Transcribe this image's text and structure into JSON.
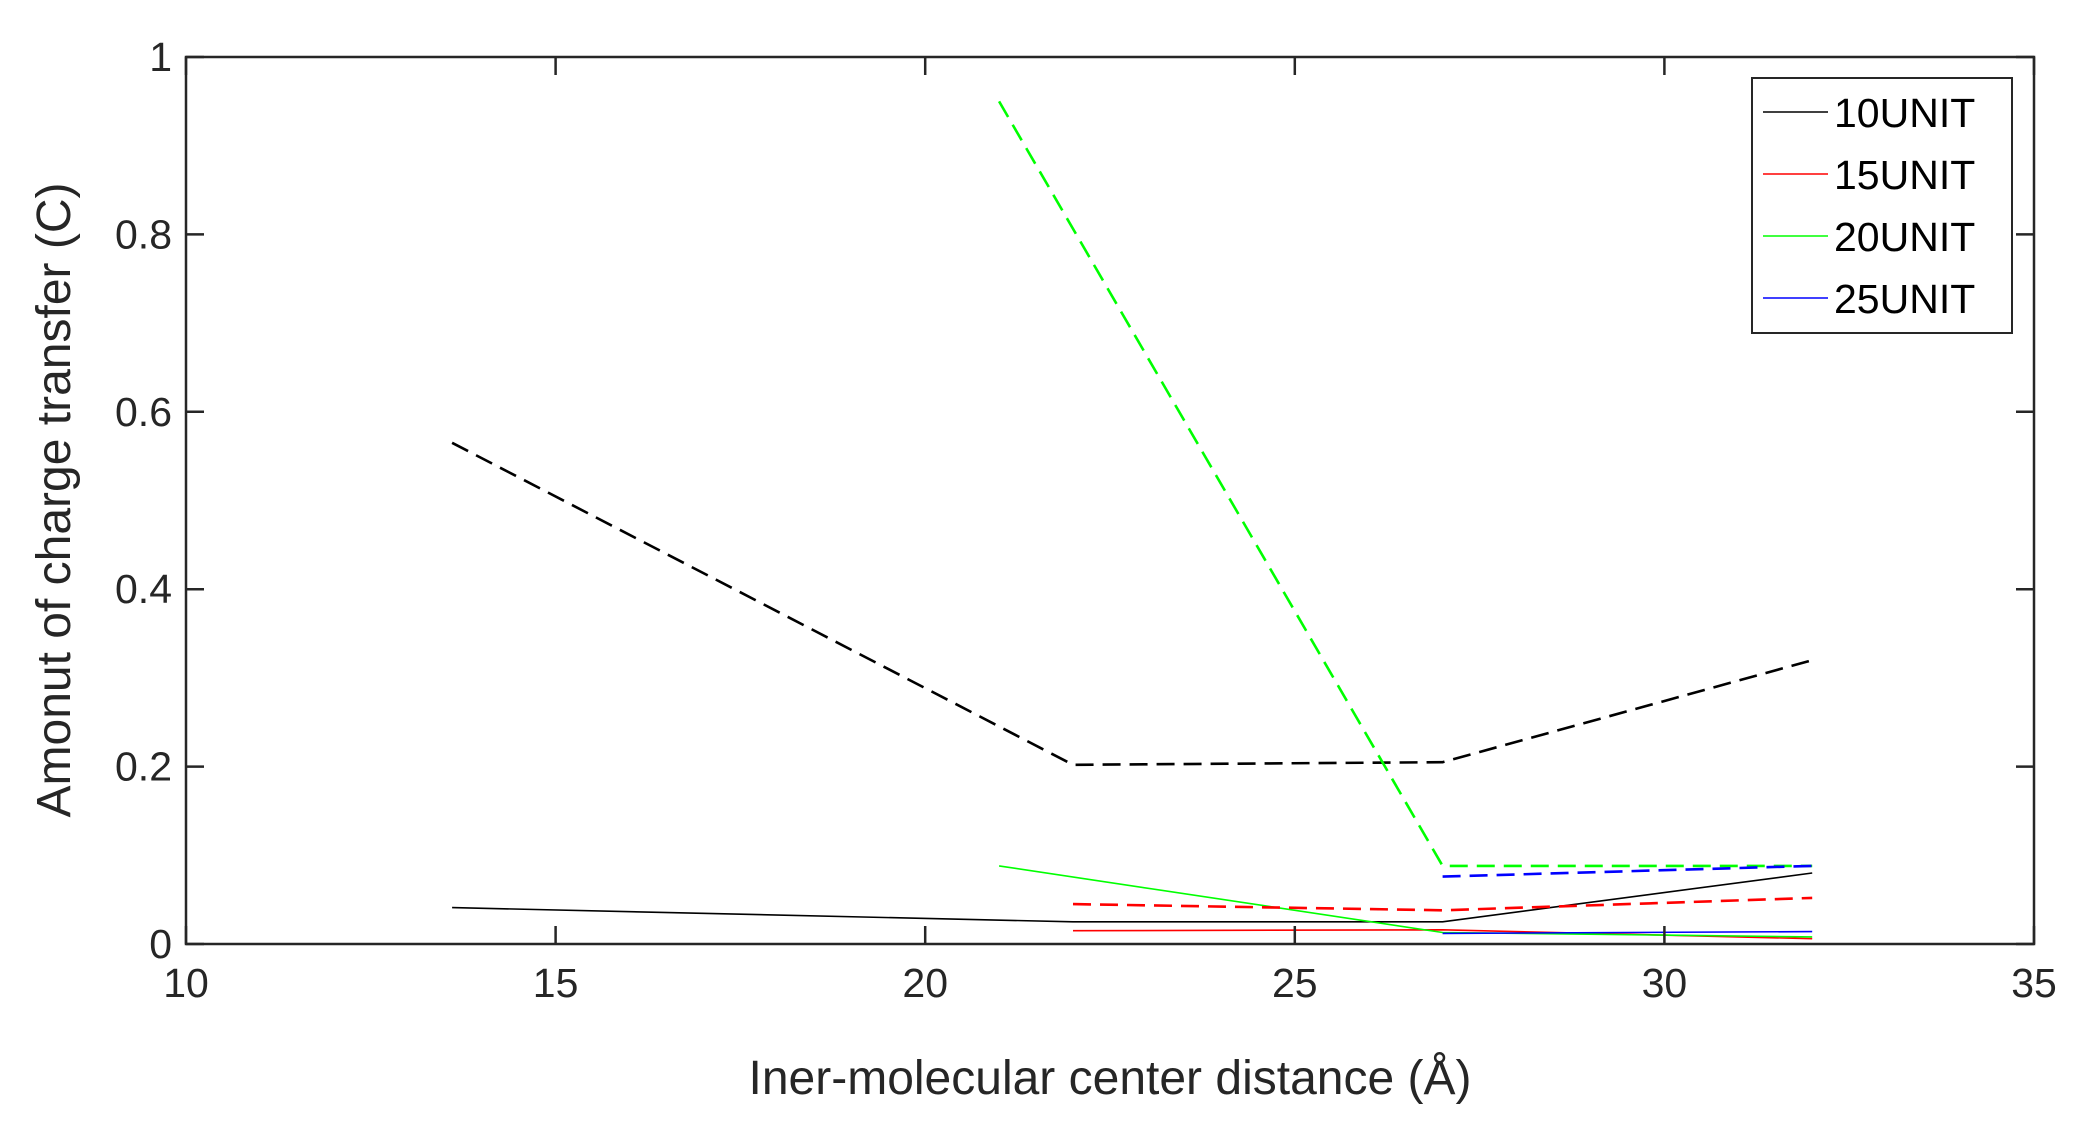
{
  "chart_data": {
    "type": "line",
    "title": "",
    "xlabel": "Iner-molecular center distance (Å)",
    "ylabel": "Amonut of charge transfer (C)",
    "xlim": [
      10,
      35
    ],
    "ylim": [
      0,
      1
    ],
    "x_ticks": [
      10,
      15,
      20,
      25,
      30,
      35
    ],
    "y_ticks": [
      0,
      0.2,
      0.4,
      0.6,
      0.8,
      1
    ],
    "x_tick_labels": [
      "10",
      "15",
      "20",
      "25",
      "30",
      "35"
    ],
    "y_tick_labels": [
      "0",
      "0.2",
      "0.4",
      "0.6",
      "0.8",
      "1"
    ],
    "grid": false,
    "legend_position": "top-right",
    "series": [
      {
        "name": "10UNIT",
        "color": "#000000",
        "style": "solid",
        "x": [
          13.6,
          22,
          27,
          32
        ],
        "y": [
          0.041,
          0.025,
          0.025,
          0.08
        ]
      },
      {
        "name": "15UNIT",
        "color": "#ff0000",
        "style": "solid",
        "x": [
          22,
          27,
          32
        ],
        "y": [
          0.015,
          0.016,
          0.006
        ]
      },
      {
        "name": "20UNIT",
        "color": "#00ff00",
        "style": "solid",
        "x": [
          21,
          27,
          32
        ],
        "y": [
          0.088,
          0.013,
          0.008
        ]
      },
      {
        "name": "25UNIT",
        "color": "#0000ff",
        "style": "solid",
        "x": [
          27,
          32
        ],
        "y": [
          0.012,
          0.014
        ]
      },
      {
        "color": "#000000",
        "style": "dashed",
        "x": [
          13.6,
          22,
          27,
          32
        ],
        "y": [
          0.565,
          0.202,
          0.205,
          0.32
        ]
      },
      {
        "color": "#ff0000",
        "style": "dashed",
        "x": [
          22,
          27,
          32
        ],
        "y": [
          0.045,
          0.038,
          0.052
        ]
      },
      {
        "color": "#00ff00",
        "style": "dashed",
        "x": [
          21,
          27,
          32
        ],
        "y": [
          0.95,
          0.088,
          0.088
        ]
      },
      {
        "color": "#0000ff",
        "style": "dashed",
        "x": [
          27,
          32
        ],
        "y": [
          0.076,
          0.088
        ]
      }
    ]
  }
}
